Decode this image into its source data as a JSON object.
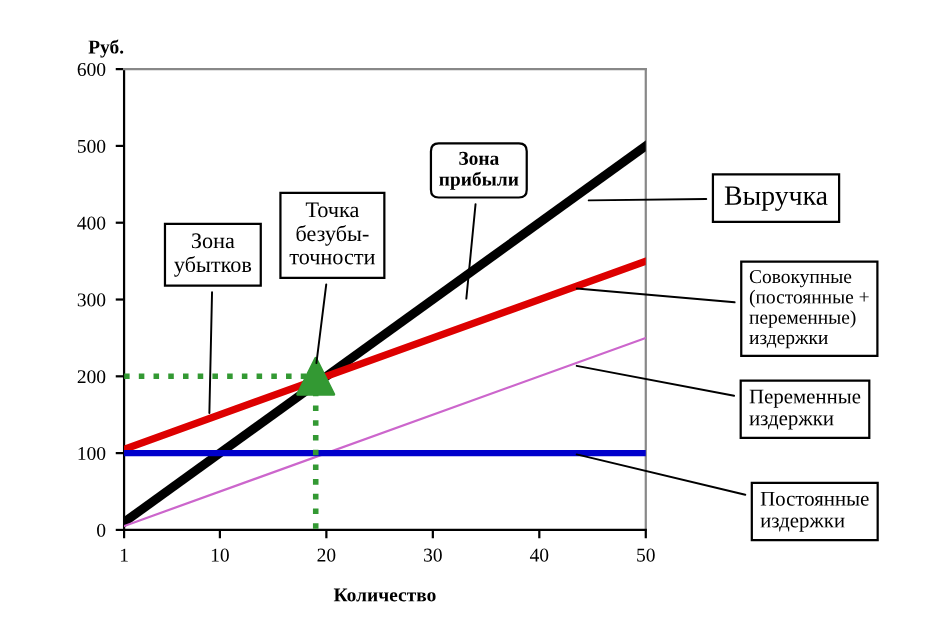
{
  "chart_data": {
    "type": "line",
    "ylabel": "Руб.",
    "xlabel": "Количество",
    "xlim": [
      1,
      50
    ],
    "xticks": [
      1,
      10,
      20,
      30,
      40,
      50
    ],
    "ylim": [
      0,
      600
    ],
    "yticks": [
      0,
      100,
      200,
      300,
      400,
      500,
      600
    ],
    "grid": false,
    "marker": "none",
    "line_style": "solid",
    "series": [
      {
        "color": "#000000",
        "x": [
          1,
          50
        ],
        "values": [
          10,
          500
        ]
      },
      {
        "color": "#dd0000",
        "x": [
          1,
          50
        ],
        "values": [
          105,
          350
        ]
      },
      {
        "color": "#cc66cc",
        "x": [
          1,
          50
        ],
        "values": [
          5,
          250
        ]
      },
      {
        "color": "#0000cc",
        "x": [
          1,
          50
        ],
        "values": [
          100,
          100
        ]
      },
      {
        "color": "#339933",
        "x": [
          1,
          19,
          19
        ],
        "values": [
          200,
          200,
          0
        ],
        "line_style": "dotted"
      },
      {
        "type": "scatter",
        "color": "#339933",
        "x": [
          19
        ],
        "values": [
          200
        ],
        "marker": "triangle"
      }
    ],
    "annotations": [
      {
        "text": "Зона\nубытков",
        "x": 9,
        "y": 145
      },
      {
        "text": "Точка\nбезубы-\nточности",
        "x": 19,
        "y": 210
      },
      "Зона\nприбыли",
      "Выручка",
      {
        "text": "Совокупные\n(постоянные +\nпеременные)\nиздержки",
        "x": 43,
        "y": 315
      },
      {
        "text": "Переменные\nиздержки",
        "x": 43,
        "y": 215
      },
      {
        "text": "Постоянные\nиздержки",
        "x": 43,
        "y": 100
      }
    ]
  }
}
